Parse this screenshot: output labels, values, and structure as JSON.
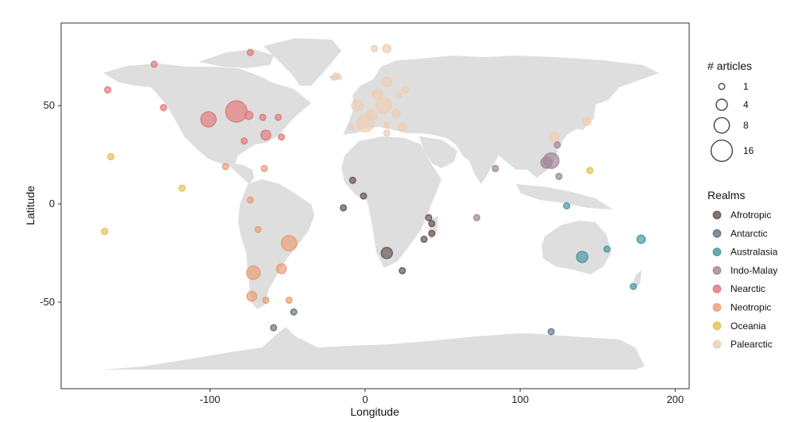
{
  "chart_data": {
    "type": "scatter",
    "base_map": "world",
    "xlabel": "Longitude",
    "ylabel": "Latitude",
    "xlim": [
      -196,
      209
    ],
    "ylim": [
      -94,
      92
    ],
    "xticks": [
      -100,
      0,
      100,
      200
    ],
    "yticks": [
      -50,
      0,
      50
    ],
    "grid": false,
    "legend_position": "right",
    "size_legend": {
      "title": "# articles",
      "entries": [
        {
          "label": "1",
          "value": 1
        },
        {
          "label": "4",
          "value": 4
        },
        {
          "label": "8",
          "value": 8
        },
        {
          "label": "16",
          "value": 16
        }
      ]
    },
    "realms": {
      "title": "Realms",
      "entries": [
        {
          "name": "Afrotropic",
          "color": "#6b5a55"
        },
        {
          "name": "Antarctic",
          "color": "#6a7a88"
        },
        {
          "name": "Australasia",
          "color": "#4e9aa6"
        },
        {
          "name": "Indo-Malay",
          "color": "#a3899a"
        },
        {
          "name": "Nearctic",
          "color": "#e27d7d"
        },
        {
          "name": "Neotropic",
          "color": "#e9a07a"
        },
        {
          "name": "Oceania",
          "color": "#e4c35c"
        },
        {
          "name": "Palearctic",
          "color": "#efcfb4"
        }
      ]
    },
    "points": [
      {
        "lon": -83,
        "lat": 47,
        "n": 16,
        "realm": "Nearctic"
      },
      {
        "lon": -101,
        "lat": 43,
        "n": 8,
        "realm": "Nearctic"
      },
      {
        "lon": -64,
        "lat": 35,
        "n": 3,
        "realm": "Nearctic"
      },
      {
        "lon": -75,
        "lat": 45,
        "n": 2,
        "realm": "Nearctic"
      },
      {
        "lon": -66,
        "lat": 44,
        "n": 1,
        "realm": "Nearctic"
      },
      {
        "lon": -56,
        "lat": 44,
        "n": 1,
        "realm": "Nearctic"
      },
      {
        "lon": -54,
        "lat": 34,
        "n": 1,
        "realm": "Nearctic"
      },
      {
        "lon": -78,
        "lat": 32,
        "n": 1,
        "realm": "Nearctic"
      },
      {
        "lon": -74,
        "lat": 77,
        "n": 1,
        "realm": "Nearctic"
      },
      {
        "lon": -136,
        "lat": 71,
        "n": 1,
        "realm": "Nearctic"
      },
      {
        "lon": -166,
        "lat": 58,
        "n": 1,
        "realm": "Nearctic"
      },
      {
        "lon": -130,
        "lat": 49,
        "n": 1,
        "realm": "Nearctic"
      },
      {
        "lon": -90,
        "lat": 19,
        "n": 1,
        "realm": "Neotropic"
      },
      {
        "lon": -65,
        "lat": 18,
        "n": 1,
        "realm": "Neotropic"
      },
      {
        "lon": -74,
        "lat": 2,
        "n": 1,
        "realm": "Neotropic"
      },
      {
        "lon": -69,
        "lat": -13,
        "n": 1,
        "realm": "Neotropic"
      },
      {
        "lon": -49,
        "lat": -20,
        "n": 8,
        "realm": "Neotropic"
      },
      {
        "lon": -72,
        "lat": -35,
        "n": 6,
        "realm": "Neotropic"
      },
      {
        "lon": -54,
        "lat": -33,
        "n": 3,
        "realm": "Neotropic"
      },
      {
        "lon": -73,
        "lat": -47,
        "n": 3,
        "realm": "Neotropic"
      },
      {
        "lon": -64,
        "lat": -49,
        "n": 1,
        "realm": "Neotropic"
      },
      {
        "lon": -49,
        "lat": -49,
        "n": 1,
        "realm": "Neotropic"
      },
      {
        "lon": -164,
        "lat": 24,
        "n": 1,
        "realm": "Oceania"
      },
      {
        "lon": -118,
        "lat": 8,
        "n": 1,
        "realm": "Oceania"
      },
      {
        "lon": -168,
        "lat": -14,
        "n": 1,
        "realm": "Oceania"
      },
      {
        "lon": 145,
        "lat": 17,
        "n": 1,
        "realm": "Oceania"
      },
      {
        "lon": -8,
        "lat": 12,
        "n": 1,
        "realm": "Afrotropic"
      },
      {
        "lon": -1,
        "lat": 4,
        "n": 1,
        "realm": "Afrotropic"
      },
      {
        "lon": -14,
        "lat": -2,
        "n": 1,
        "realm": "Afrotropic"
      },
      {
        "lon": 14,
        "lat": -25,
        "n": 4,
        "realm": "Afrotropic"
      },
      {
        "lon": 24,
        "lat": -34,
        "n": 1,
        "realm": "Afrotropic"
      },
      {
        "lon": 38,
        "lat": -18,
        "n": 1,
        "realm": "Afrotropic"
      },
      {
        "lon": 41,
        "lat": -7,
        "n": 1,
        "realm": "Afrotropic"
      },
      {
        "lon": 43,
        "lat": -10,
        "n": 1,
        "realm": "Afrotropic"
      },
      {
        "lon": 43,
        "lat": -15,
        "n": 1,
        "realm": "Afrotropic"
      },
      {
        "lon": -59,
        "lat": -63,
        "n": 1,
        "realm": "Antarctic"
      },
      {
        "lon": -46,
        "lat": -55,
        "n": 1,
        "realm": "Antarctic"
      },
      {
        "lon": 120,
        "lat": -65,
        "n": 1,
        "realm": "Antarctic"
      },
      {
        "lon": 140,
        "lat": -27,
        "n": 4,
        "realm": "Australasia"
      },
      {
        "lon": 178,
        "lat": -18,
        "n": 2,
        "realm": "Australasia"
      },
      {
        "lon": 156,
        "lat": -23,
        "n": 1,
        "realm": "Australasia"
      },
      {
        "lon": 173,
        "lat": -42,
        "n": 1,
        "realm": "Australasia"
      },
      {
        "lon": 130,
        "lat": -1,
        "n": 1,
        "realm": "Australasia"
      },
      {
        "lon": 120,
        "lat": 22,
        "n": 8,
        "realm": "Indo-Malay"
      },
      {
        "lon": 117,
        "lat": 21,
        "n": 4,
        "realm": "Indo-Malay"
      },
      {
        "lon": 124,
        "lat": 30,
        "n": 1,
        "realm": "Indo-Malay"
      },
      {
        "lon": 125,
        "lat": 14,
        "n": 1,
        "realm": "Indo-Malay"
      },
      {
        "lon": 84,
        "lat": 18,
        "n": 1,
        "realm": "Indo-Malay"
      },
      {
        "lon": 72,
        "lat": -7,
        "n": 1,
        "realm": "Indo-Malay"
      },
      {
        "lon": 0,
        "lat": 41,
        "n": 10,
        "realm": "Palearctic"
      },
      {
        "lon": 12,
        "lat": 50,
        "n": 8,
        "realm": "Palearctic"
      },
      {
        "lon": -5,
        "lat": 50,
        "n": 4,
        "realm": "Palearctic"
      },
      {
        "lon": 4,
        "lat": 45,
        "n": 4,
        "realm": "Palearctic"
      },
      {
        "lon": 8,
        "lat": 56,
        "n": 3,
        "realm": "Palearctic"
      },
      {
        "lon": 14,
        "lat": 62,
        "n": 3,
        "realm": "Palearctic"
      },
      {
        "lon": 14,
        "lat": 79,
        "n": 2,
        "realm": "Palearctic"
      },
      {
        "lon": 6,
        "lat": 79,
        "n": 1,
        "realm": "Palearctic"
      },
      {
        "lon": -19,
        "lat": 65,
        "n": 1,
        "realm": "Palearctic"
      },
      {
        "lon": 20,
        "lat": 46,
        "n": 2,
        "realm": "Palearctic"
      },
      {
        "lon": 24,
        "lat": 39,
        "n": 2,
        "realm": "Palearctic"
      },
      {
        "lon": 14,
        "lat": 40,
        "n": 1,
        "realm": "Palearctic"
      },
      {
        "lon": 26,
        "lat": 58,
        "n": 1,
        "realm": "Palearctic"
      },
      {
        "lon": 22,
        "lat": 55,
        "n": 1,
        "realm": "Palearctic"
      },
      {
        "lon": -9,
        "lat": 39,
        "n": 1,
        "realm": "Palearctic"
      },
      {
        "lon": 14,
        "lat": 36,
        "n": 1,
        "realm": "Palearctic"
      },
      {
        "lon": 122,
        "lat": 34,
        "n": 3,
        "realm": "Palearctic"
      },
      {
        "lon": 143,
        "lat": 42,
        "n": 2,
        "realm": "Palearctic"
      }
    ]
  }
}
